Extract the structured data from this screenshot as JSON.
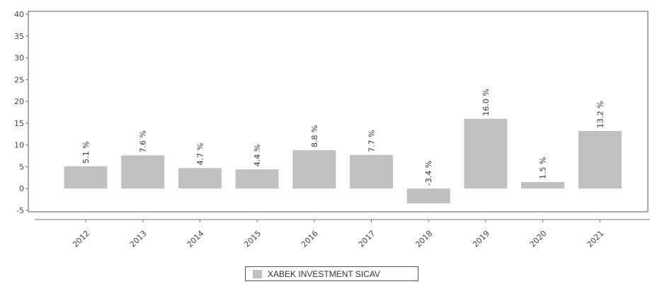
{
  "chart_data": {
    "type": "bar",
    "categories": [
      "2012",
      "2013",
      "2014",
      "2015",
      "2016",
      "2017",
      "2018",
      "2019",
      "2020",
      "2021"
    ],
    "series": [
      {
        "name": "XABEK INVESTMENT SICAV",
        "values": [
          5.1,
          7.6,
          4.7,
          4.4,
          8.8,
          7.7,
          -3.4,
          16.0,
          1.5,
          13.2
        ],
        "labels": [
          "5.1 %",
          "7.6 %",
          "4.7 %",
          "4.4 %",
          "8.8 %",
          "7.7 %",
          "-3.4 %",
          "16.0 %",
          "1.5 %",
          "13.2 %"
        ],
        "color": "#c0c0c0"
      }
    ],
    "y_ticks": [
      "40",
      "35",
      "30",
      "25",
      "20",
      "15",
      "10",
      "5",
      "0",
      "-5"
    ],
    "ylim": [
      -5,
      40
    ],
    "legend_position": "bottom-center",
    "grid": false
  }
}
